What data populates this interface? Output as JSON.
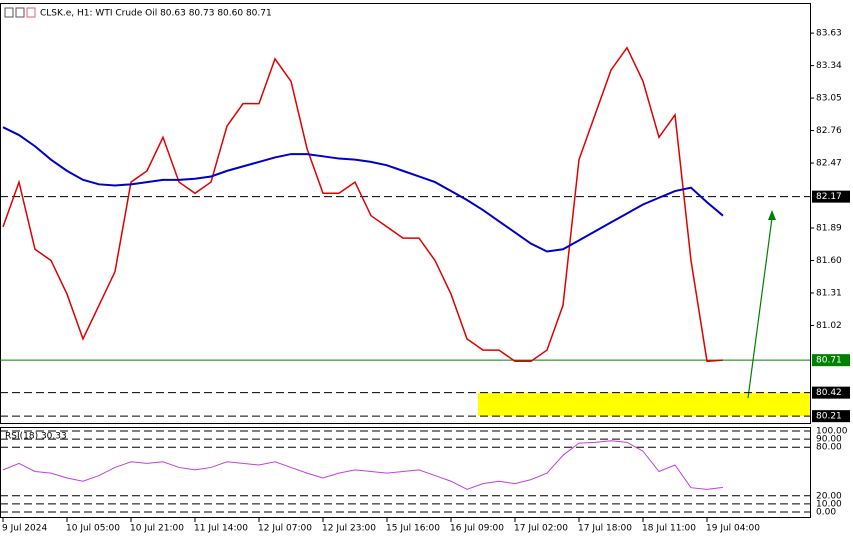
{
  "chart_data": {
    "type": "line",
    "title": "CLSK.e, H1: WTI Crude Oil 80.63 80.73 80.60 80.71",
    "categories": [
      "9 Jul 2024",
      null,
      null,
      null,
      "10 Jul 05:00",
      null,
      null,
      null,
      "10 Jul 21:00",
      null,
      null,
      null,
      "11 Jul 14:00",
      null,
      null,
      null,
      "12 Jul 07:00",
      null,
      null,
      null,
      "12 Jul 23:00",
      null,
      null,
      null,
      "15 Jul 16:00",
      null,
      null,
      null,
      "16 Jul 09:00",
      null,
      null,
      null,
      "17 Jul 02:00",
      null,
      null,
      null,
      "17 Jul 18:00",
      null,
      null,
      null,
      "18 Jul 11:00",
      null,
      null,
      null,
      "19 Jul 04:00",
      null
    ],
    "series": [
      {
        "color": "#e00000",
        "values": [
          81.9,
          82.3,
          81.7,
          81.6,
          81.3,
          80.9,
          81.2,
          81.5,
          82.3,
          82.4,
          82.7,
          82.3,
          82.2,
          82.3,
          82.8,
          83.0,
          83.0,
          83.4,
          83.2,
          82.6,
          82.2,
          82.2,
          82.3,
          82.0,
          81.9,
          81.8,
          81.8,
          81.6,
          81.3,
          80.9,
          80.8,
          80.8,
          80.7,
          80.7,
          80.8,
          81.2,
          82.5,
          82.9,
          83.3,
          83.5,
          83.2,
          82.7,
          82.9,
          81.6,
          80.7,
          80.71
        ]
      },
      {
        "color": "#0000c8",
        "values": [
          82.79,
          82.72,
          82.62,
          82.5,
          82.4,
          82.32,
          82.28,
          82.27,
          82.28,
          82.3,
          82.32,
          82.32,
          82.33,
          82.35,
          82.4,
          82.44,
          82.48,
          82.52,
          82.55,
          82.55,
          82.53,
          82.51,
          82.5,
          82.48,
          82.45,
          82.4,
          82.35,
          82.3,
          82.22,
          82.14,
          82.05,
          81.95,
          81.85,
          81.75,
          81.68,
          81.7,
          81.78,
          81.86,
          81.94,
          82.02,
          82.1,
          82.16,
          82.22,
          82.25,
          82.12,
          82.0
        ]
      }
    ],
    "ylim": [
      80.14,
      83.89
    ],
    "yticks": [
      83.63,
      83.34,
      83.05,
      82.76,
      82.47,
      81.89,
      {
        "value": 81.6,
        "label": "81.60"
      },
      81.31,
      81.02
    ],
    "levels": [
      {
        "value": 82.17,
        "color": "#000000",
        "style": "dashed"
      },
      {
        "value": 80.71,
        "color": "#008000",
        "style": "solid"
      },
      {
        "value": 80.42,
        "color": "#000000",
        "style": "dashed"
      },
      {
        "value": 80.21,
        "color": "#000000",
        "style": "dashed"
      }
    ],
    "zone_color": "#ffff00",
    "indicator": {
      "title": "RSI(18) 30.33",
      "color": "#c040e0",
      "ylim": [
        0,
        100
      ],
      "yticks": [
        {
          "value": 100,
          "label": "100.00"
        },
        {
          "value": 90,
          "label": "90.00"
        },
        {
          "value": 80,
          "label": "80.00"
        },
        {
          "value": 20,
          "label": "20.00"
        },
        {
          "value": 10,
          "label": "10.00"
        },
        {
          "value": 0,
          "label": "0.00"
        }
      ],
      "values": [
        52,
        60,
        50,
        48,
        42,
        38,
        45,
        55,
        62,
        60,
        62,
        55,
        52,
        55,
        62,
        60,
        58,
        62,
        55,
        48,
        42,
        48,
        52,
        50,
        48,
        50,
        52,
        45,
        38,
        28,
        35,
        38,
        35,
        40,
        48,
        70,
        85,
        86,
        88,
        86,
        75,
        50,
        58,
        30,
        28,
        30.33
      ]
    }
  }
}
